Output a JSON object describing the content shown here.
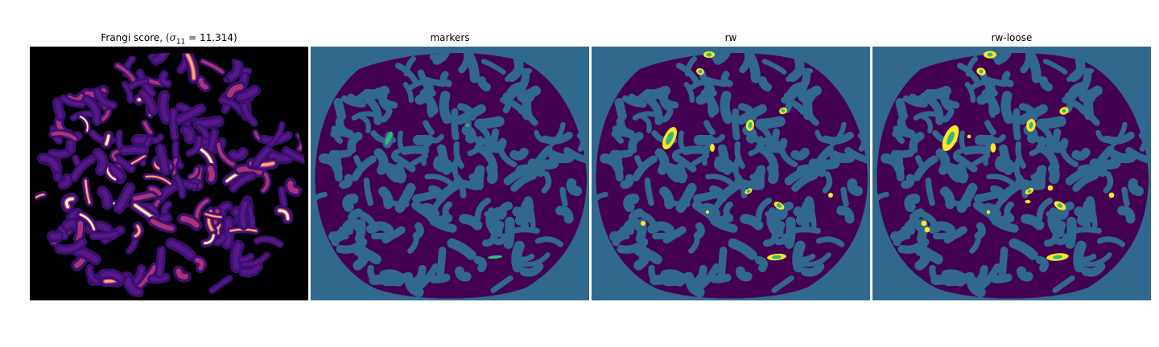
{
  "panels": [
    {
      "title_text": "Frangi score, (",
      "title_math": "σ",
      "title_sub": "11",
      "title_rest": " = 11.314)"
    },
    {
      "title": "markers"
    },
    {
      "title": "rw"
    },
    {
      "title": "rw-loose"
    }
  ],
  "colors": {
    "background": "#ffffff",
    "frangi_background": "#000000",
    "segmentation_background": "#31688e",
    "segmentation_foreground": "#440154",
    "marker_green": "#35b779",
    "highlight_yellow": "#fde725",
    "frangi_low": "#3b0f70",
    "frangi_mid": "#b73779",
    "frangi_high": "#fcfdbf"
  }
}
